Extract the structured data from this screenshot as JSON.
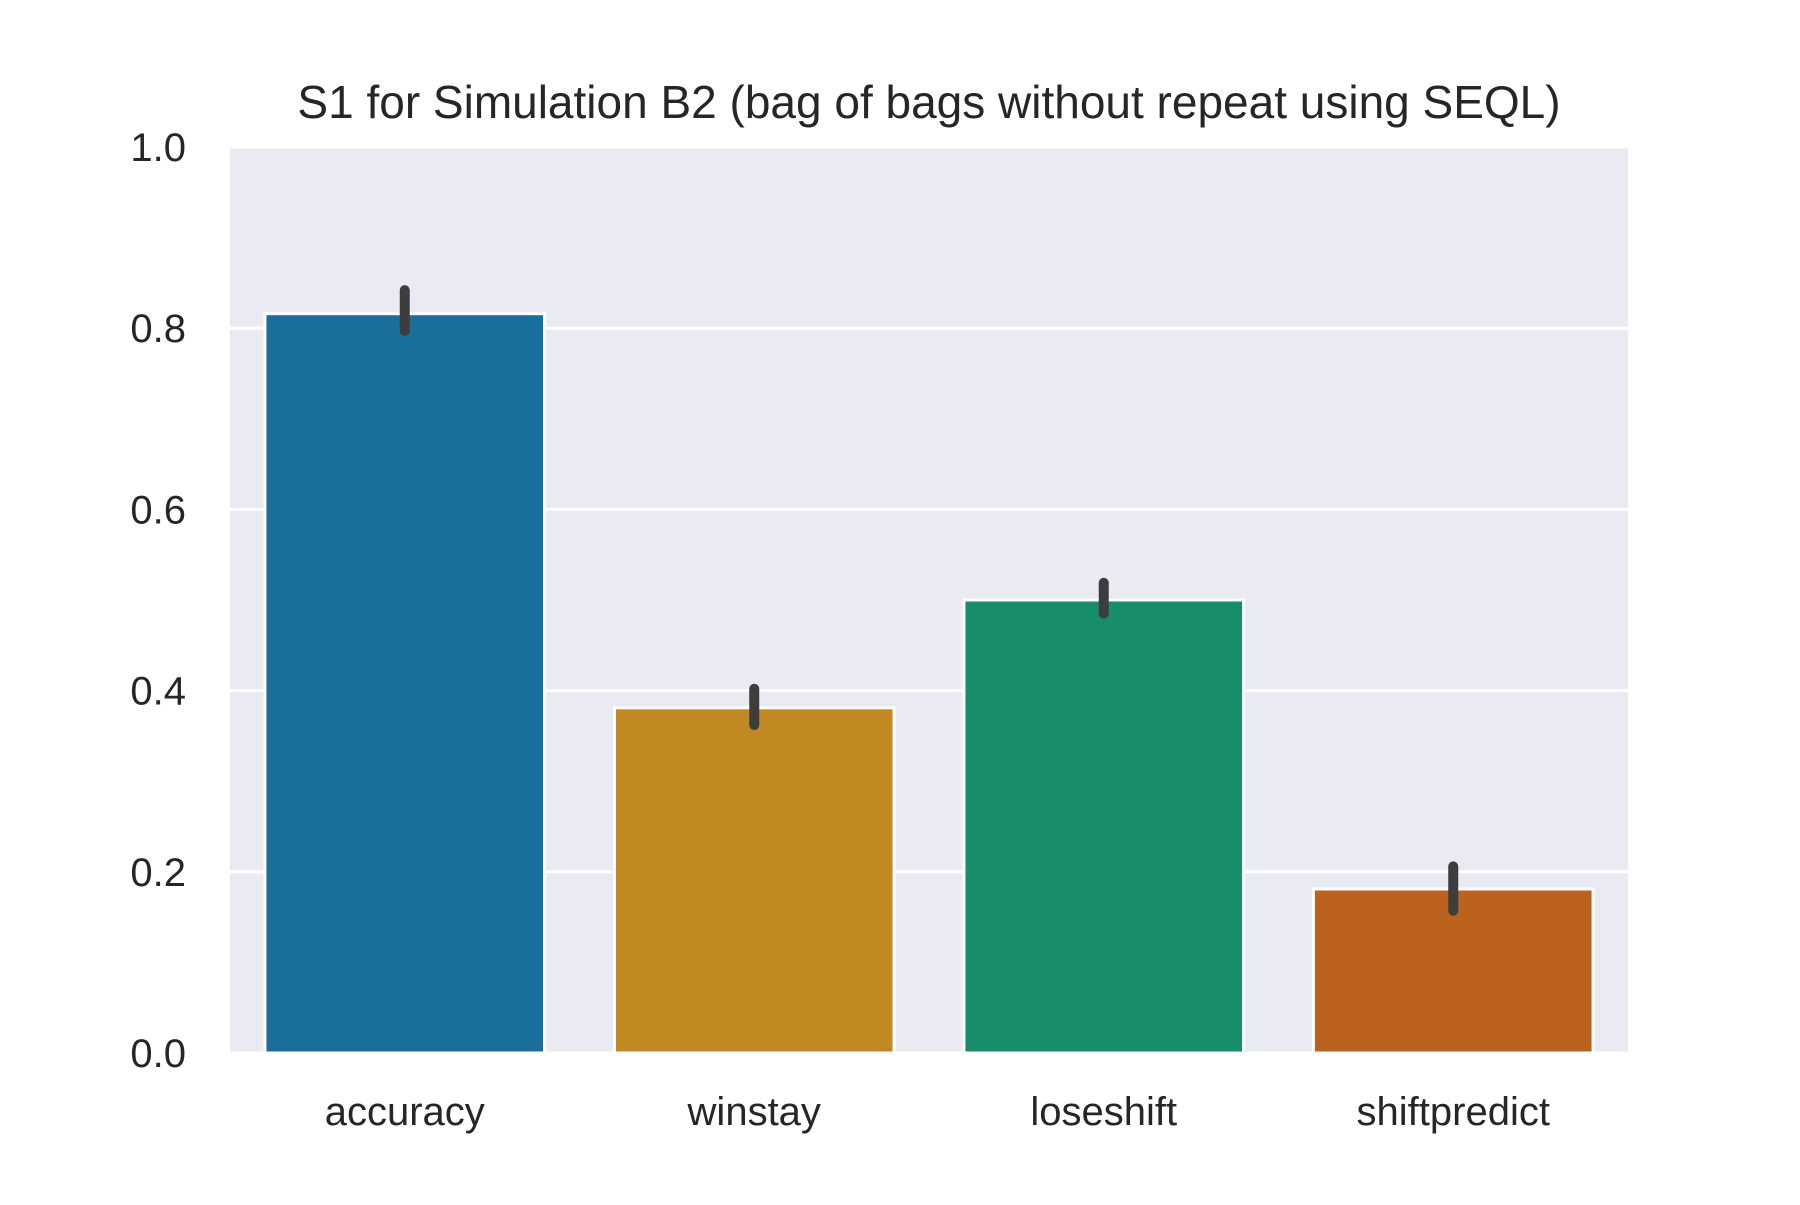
{
  "chart_data": {
    "type": "bar",
    "title": "S1 for Simulation B2 (bag of bags without repeat using SEQL)",
    "xlabel": "",
    "ylabel": "",
    "categories": [
      "accuracy",
      "winstay",
      "loseshift",
      "shiftpredict"
    ],
    "values": [
      0.816,
      0.381,
      0.5,
      0.181
    ],
    "error_bars": [
      {
        "low": 0.797,
        "high": 0.842
      },
      {
        "low": 0.362,
        "high": 0.402
      },
      {
        "low": 0.485,
        "high": 0.519
      },
      {
        "low": 0.157,
        "high": 0.206
      }
    ],
    "colors": [
      "#1a6e9b",
      "#c28822",
      "#178d6b",
      "#ba621e"
    ],
    "error_bar_color": "#3d3d3d",
    "ylim": [
      0,
      1.0
    ],
    "yticks": [
      0.0,
      0.2,
      0.4,
      0.6,
      0.8,
      1.0
    ],
    "ytick_labels": [
      "0.0",
      "0.2",
      "0.4",
      "0.6",
      "0.8",
      "1.0"
    ],
    "grid": true,
    "grid_color": "#ffffff",
    "plot_background": "#eaeaf2",
    "legend": "none"
  }
}
